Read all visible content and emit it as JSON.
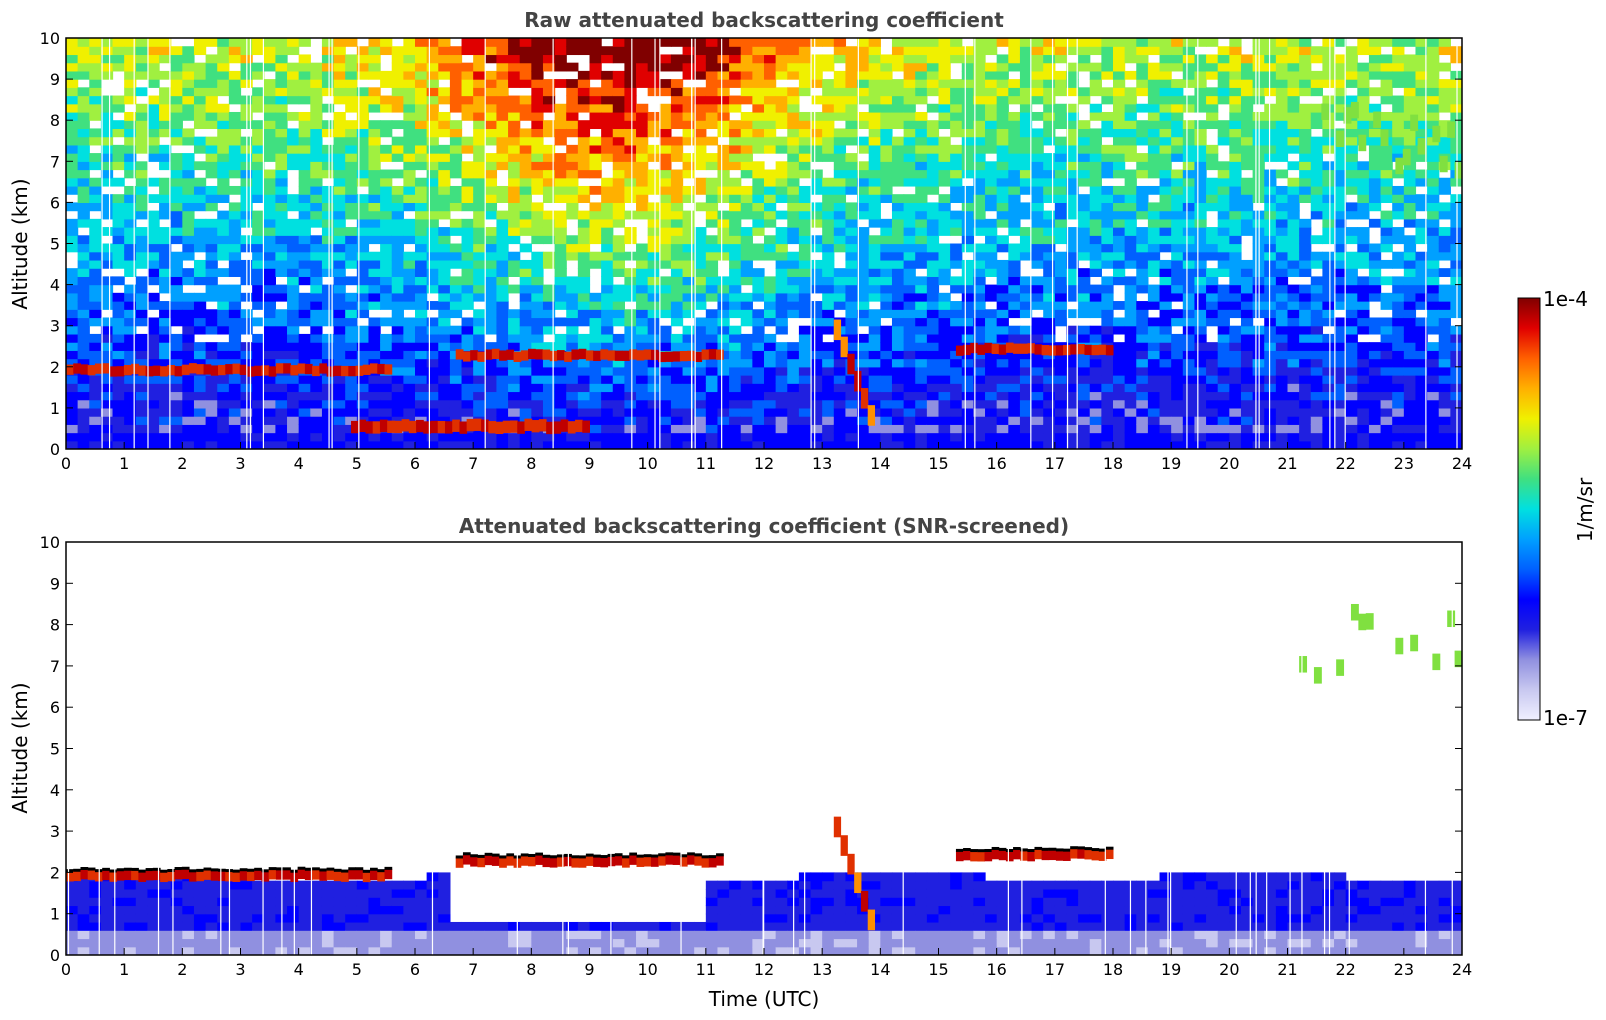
{
  "chart_data": [
    {
      "type": "heatmap",
      "title": "Raw attenuated backscattering coefficient",
      "xlabel": "",
      "ylabel": "Altitude (km)",
      "xlim": [
        0,
        24
      ],
      "ylim": [
        0,
        10
      ],
      "xticks": [
        "0",
        "1",
        "2",
        "3",
        "4",
        "5",
        "6",
        "7",
        "8",
        "9",
        "10",
        "11",
        "12",
        "13",
        "14",
        "15",
        "16",
        "17",
        "18",
        "19",
        "20",
        "21",
        "22",
        "23",
        "24"
      ],
      "yticks": [
        "0",
        "1",
        "2",
        "3",
        "4",
        "5",
        "6",
        "7",
        "8",
        "9",
        "10"
      ],
      "features": [
        {
          "name": "cloud layer",
          "x": [
            0,
            5.6
          ],
          "y": [
            1.8,
            2.05
          ],
          "level": "high"
        },
        {
          "name": "cloud layer",
          "x": [
            6.7,
            11.3
          ],
          "y": [
            2.15,
            2.4
          ],
          "level": "high"
        },
        {
          "name": "cloud layer",
          "x": [
            15.3,
            18.0
          ],
          "y": [
            2.3,
            2.55
          ],
          "level": "high"
        },
        {
          "name": "virga plume",
          "x": [
            13.2,
            13.9
          ],
          "y": [
            0.4,
            2.9
          ],
          "level": "high"
        },
        {
          "name": "aerosol top",
          "x": [
            4.9,
            9.0
          ],
          "y": [
            0.4,
            0.7
          ],
          "level": "high"
        },
        {
          "name": "cirrus",
          "x": [
            21.2,
            24
          ],
          "y": [
            6.5,
            8.7
          ],
          "level": "mid"
        }
      ]
    },
    {
      "type": "heatmap",
      "title": "Attenuated backscattering coefficient (SNR-screened)",
      "xlabel": "Time (UTC)",
      "ylabel": "Altitude (km)",
      "xlim": [
        0,
        24
      ],
      "ylim": [
        0,
        10
      ],
      "xticks": [
        "0",
        "1",
        "2",
        "3",
        "4",
        "5",
        "6",
        "7",
        "8",
        "9",
        "10",
        "11",
        "12",
        "13",
        "14",
        "15",
        "16",
        "17",
        "18",
        "19",
        "20",
        "21",
        "22",
        "23",
        "24"
      ],
      "yticks": [
        "0",
        "1",
        "2",
        "3",
        "4",
        "5",
        "6",
        "7",
        "8",
        "9",
        "10"
      ],
      "features": [
        {
          "name": "boundary layer",
          "x": [
            0,
            24
          ],
          "y": [
            0,
            2.0
          ],
          "level": "low"
        },
        {
          "name": "cloud layer",
          "x": [
            0,
            5.6
          ],
          "y": [
            1.8,
            2.05
          ],
          "level": "high"
        },
        {
          "name": "cloud layer",
          "x": [
            6.7,
            11.3
          ],
          "y": [
            2.15,
            2.4
          ],
          "level": "high"
        },
        {
          "name": "cloud layer",
          "x": [
            15.3,
            18.0
          ],
          "y": [
            2.3,
            2.55
          ],
          "level": "high"
        },
        {
          "name": "virga plume",
          "x": [
            13.2,
            13.9
          ],
          "y": [
            0.4,
            3.1
          ],
          "level": "high"
        },
        {
          "name": "cirrus",
          "x": [
            21.2,
            24
          ],
          "y": [
            6.5,
            8.6
          ],
          "level": "mid"
        }
      ]
    }
  ],
  "colorbar": {
    "max_label": "1e-4",
    "min_label": "1e-7",
    "unit_label": "1/m/sr",
    "colormap": [
      "#f0f0ff",
      "#c8c8f0",
      "#9090e0",
      "#2020e0",
      "#0000ff",
      "#0060ff",
      "#00a0ff",
      "#00e0e0",
      "#40e080",
      "#a0f040",
      "#f0f000",
      "#ffb000",
      "#ff6000",
      "#e00000",
      "#800000"
    ]
  }
}
